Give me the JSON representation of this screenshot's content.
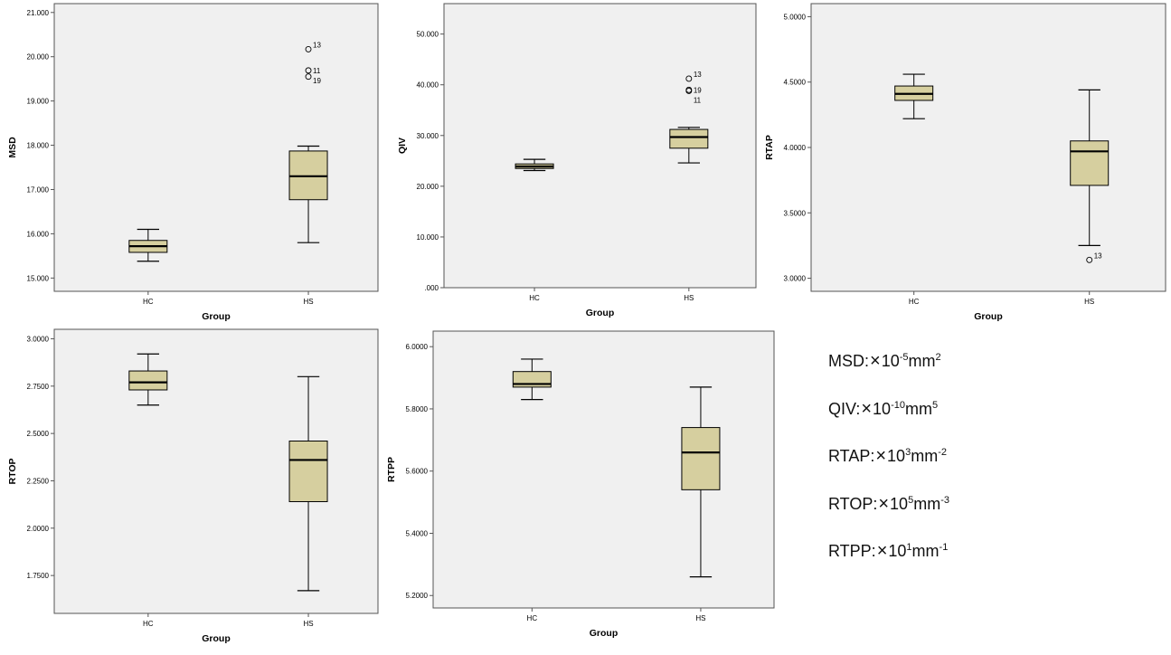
{
  "chart_data": [
    {
      "type": "box",
      "categories": [
        "HC",
        "HS"
      ],
      "xlabel": "Group",
      "ylabel": "MSD",
      "ylim": [
        14.7,
        21.2
      ],
      "yticks": [
        15,
        16,
        17,
        18,
        19,
        20,
        21
      ],
      "ytick_labels": [
        "15.000",
        "16.000",
        "17.000",
        "18.000",
        "19.000",
        "20.000",
        "21.000"
      ],
      "boxes": [
        {
          "category": "HC",
          "min": 15.38,
          "q1": 15.58,
          "median": 15.72,
          "q3": 15.85,
          "max": 16.1,
          "outliers": []
        },
        {
          "category": "HS",
          "min": 15.8,
          "q1": 16.77,
          "median": 17.3,
          "q3": 17.87,
          "max": 17.98,
          "outliers": [
            {
              "value": 20.17,
              "label": "13"
            },
            {
              "value": 19.69,
              "label": "11"
            },
            {
              "value": 19.55,
              "label": "19"
            }
          ]
        }
      ]
    },
    {
      "type": "box",
      "categories": [
        "HC",
        "HS"
      ],
      "xlabel": "Group",
      "ylabel": "QIV",
      "ylim": [
        0,
        56
      ],
      "yticks": [
        0,
        10,
        20,
        30,
        40,
        50
      ],
      "ytick_labels": [
        ".000",
        "10.000",
        "20.000",
        "30.000",
        "40.000",
        "50.000"
      ],
      "boxes": [
        {
          "category": "HC",
          "min": 23.1,
          "q1": 23.5,
          "median": 23.9,
          "q3": 24.4,
          "max": 25.3,
          "outliers": []
        },
        {
          "category": "HS",
          "min": 24.6,
          "q1": 27.5,
          "median": 29.7,
          "q3": 31.2,
          "max": 31.6,
          "outliers": [
            {
              "value": 41.2,
              "label": "13"
            },
            {
              "value": 39.0,
              "label": "19"
            },
            {
              "value": 38.8,
              "label": "11"
            }
          ]
        }
      ]
    },
    {
      "type": "box",
      "categories": [
        "HC",
        "HS"
      ],
      "xlabel": "Group",
      "ylabel": "RTAP",
      "ylim": [
        2.9,
        5.1
      ],
      "yticks": [
        3.0,
        3.5,
        4.0,
        4.5,
        5.0
      ],
      "ytick_labels": [
        "3.0000",
        "3.5000",
        "4.0000",
        "4.5000",
        "5.0000"
      ],
      "boxes": [
        {
          "category": "HC",
          "min": 4.22,
          "q1": 4.36,
          "median": 4.41,
          "q3": 4.47,
          "max": 4.56,
          "outliers": []
        },
        {
          "category": "HS",
          "min": 3.25,
          "q1": 3.71,
          "median": 3.97,
          "q3": 4.05,
          "max": 4.44,
          "outliers": [
            {
              "value": 3.14,
              "label": "13"
            }
          ]
        }
      ]
    },
    {
      "type": "box",
      "categories": [
        "HC",
        "HS"
      ],
      "xlabel": "Group",
      "ylabel": "RTOP",
      "ylim": [
        1.55,
        3.05
      ],
      "yticks": [
        1.75,
        2.0,
        2.25,
        2.5,
        2.75,
        3.0
      ],
      "ytick_labels": [
        "1.7500",
        "2.0000",
        "2.2500",
        "2.5000",
        "2.7500",
        "3.0000"
      ],
      "boxes": [
        {
          "category": "HC",
          "min": 2.65,
          "q1": 2.73,
          "median": 2.77,
          "q3": 2.83,
          "max": 2.92,
          "outliers": []
        },
        {
          "category": "HS",
          "min": 1.67,
          "q1": 2.14,
          "median": 2.36,
          "q3": 2.46,
          "max": 2.8,
          "outliers": []
        }
      ]
    },
    {
      "type": "box",
      "categories": [
        "HC",
        "HS"
      ],
      "xlabel": "Group",
      "ylabel": "RTPP",
      "ylim": [
        5.16,
        6.05
      ],
      "yticks": [
        5.2,
        5.4,
        5.6,
        5.8,
        6.0
      ],
      "ytick_labels": [
        "5.2000",
        "5.4000",
        "5.6000",
        "5.8000",
        "6.0000"
      ],
      "boxes": [
        {
          "category": "HC",
          "min": 5.83,
          "q1": 5.87,
          "median": 5.88,
          "q3": 5.92,
          "max": 5.96,
          "outliers": []
        },
        {
          "category": "HS",
          "min": 5.26,
          "q1": 5.54,
          "median": 5.66,
          "q3": 5.74,
          "max": 5.87,
          "outliers": []
        }
      ]
    }
  ],
  "colors": {
    "plot_background": "#f0f0f0",
    "box_fill": "#d6cf9f",
    "line": "#000000",
    "frame": "#555555"
  },
  "units": [
    {
      "name": "MSD:",
      "times": "×",
      "base": "10",
      "exp": "-5",
      "unit": "mm",
      "unit_exp": "2"
    },
    {
      "name": "QIV:",
      "times": "×",
      "base": "10",
      "exp": "-10",
      "unit": "mm",
      "unit_exp": "5"
    },
    {
      "name": "RTAP:",
      "times": "×",
      "base": "10",
      "exp": "3",
      "unit": "mm",
      "unit_exp": "-2"
    },
    {
      "name": "RTOP:",
      "times": "×",
      "base": "10",
      "exp": "5",
      "unit": "mm",
      "unit_exp": "-3"
    },
    {
      "name": "RTPP:",
      "times": "×",
      "base": "10",
      "exp": "1",
      "unit": "mm",
      "unit_exp": "-1"
    }
  ]
}
